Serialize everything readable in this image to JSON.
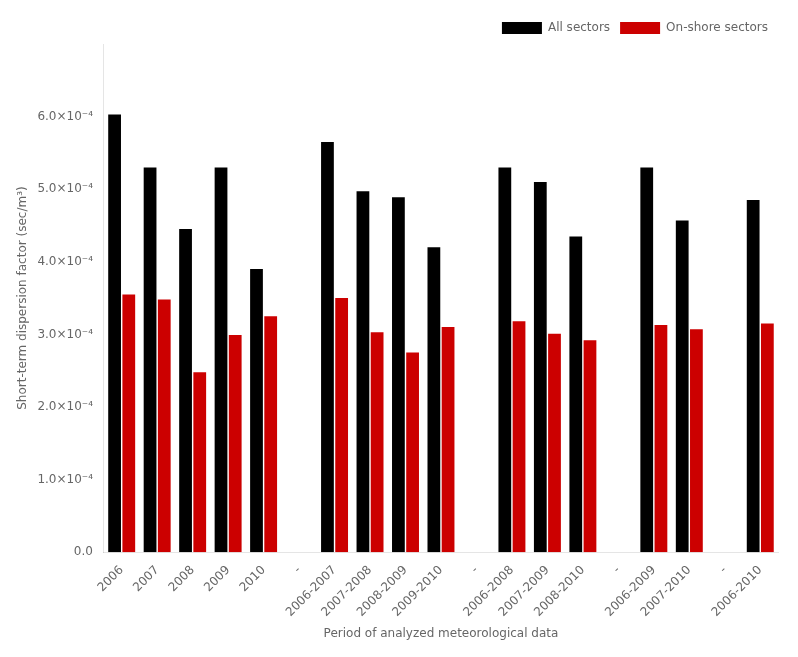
{
  "chart_data": {
    "type": "bar",
    "categories": [
      "2006",
      "2007",
      "2008",
      "2009",
      "2010",
      "-",
      "2006-2007",
      "2007-2008",
      "2008-2009",
      "2009-2010",
      "-",
      "2006-2008",
      "2007-2009",
      "2008-2010",
      "-",
      "2006-2009",
      "2007-2010",
      "-",
      "2006-2010"
    ],
    "series": [
      {
        "name": "All sectors",
        "color": "#000000",
        "values": [
          0.000603,
          0.00053,
          0.000445,
          0.00053,
          0.00039,
          null,
          0.000565,
          0.000497,
          0.000489,
          0.00042,
          null,
          0.00053,
          0.00051,
          0.000435,
          null,
          0.00053,
          0.000457,
          null,
          0.000485
        ]
      },
      {
        "name": "On-shore sectors",
        "color": "#cc0000",
        "values": [
          0.000355,
          0.000348,
          0.000248,
          0.000299,
          0.000325,
          null,
          0.00035,
          0.000303,
          0.000275,
          0.00031,
          null,
          0.000318,
          0.000301,
          0.000292,
          null,
          0.000313,
          0.000307,
          null,
          0.000315
        ]
      }
    ],
    "xlabel": "Period of analyzed meteorological data",
    "ylabel": "Short-term dispersion factor (sec/m³)",
    "ylim": [
      0,
      0.0007
    ],
    "yticks": [
      {
        "value": 0,
        "label": "0.0"
      },
      {
        "value": 0.0001,
        "label": "1.0×10⁻⁴"
      },
      {
        "value": 0.0002,
        "label": "2.0×10⁻⁴"
      },
      {
        "value": 0.0003,
        "label": "3.0×10⁻⁴"
      },
      {
        "value": 0.0004,
        "label": "4.0×10⁻⁴"
      },
      {
        "value": 0.0005,
        "label": "5.0×10⁻⁴"
      },
      {
        "value": 0.0006,
        "label": "6.0×10⁻⁴"
      }
    ],
    "legend": "upper right",
    "grid": false
  }
}
